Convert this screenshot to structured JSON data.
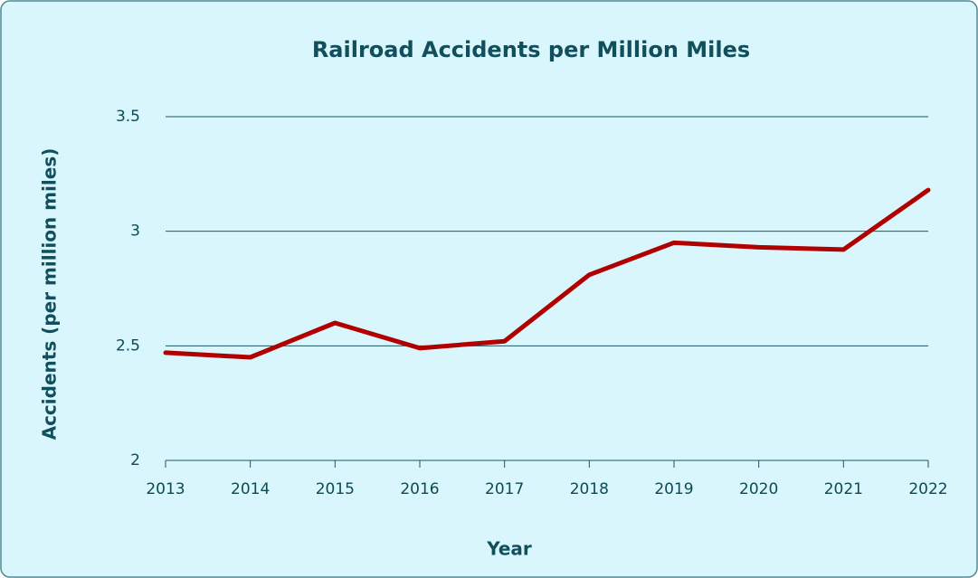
{
  "chart_data": {
    "type": "line",
    "title": "Railroad Accidents per Million Miles",
    "xlabel": "Year",
    "ylabel": "Accidents (per million miles)",
    "x": [
      2013,
      2014,
      2015,
      2016,
      2017,
      2018,
      2019,
      2020,
      2021,
      2022
    ],
    "series": [
      {
        "name": "Accidents",
        "color": "#b00000",
        "values": [
          2.47,
          2.45,
          2.6,
          2.49,
          2.52,
          2.81,
          2.95,
          2.93,
          2.92,
          3.18
        ]
      }
    ],
    "xlim": [
      2013,
      2022
    ],
    "xticks": [
      2013,
      2014,
      2015,
      2016,
      2017,
      2018,
      2019,
      2020,
      2021,
      2022
    ],
    "ylim": [
      2,
      3.5
    ],
    "yticks": [
      2,
      2.5,
      3,
      3.5
    ],
    "grid": true
  }
}
